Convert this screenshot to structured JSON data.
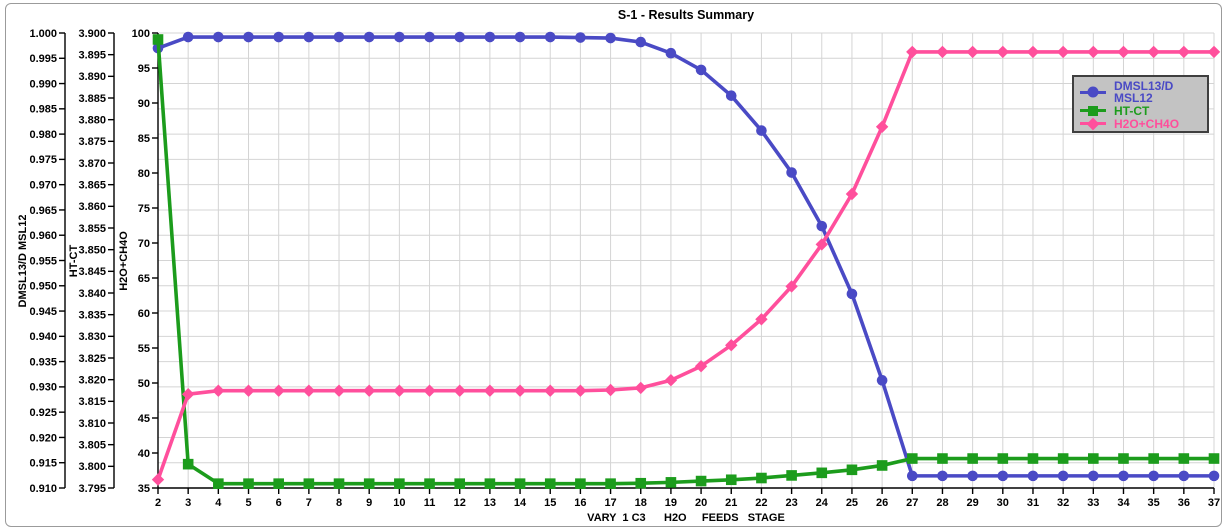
{
  "panel": {
    "background": "#FFFFFF",
    "border_color": "#9B9B9B"
  },
  "chart_data": {
    "type": "line",
    "title": "S-1 - Results Summary",
    "xlabel": "VARY 1 C3 H2O FEEDS STAGE",
    "xlabel_display": "VARY  1 C3      H2O     FEEDS   STAGE",
    "x": [
      2,
      3,
      4,
      5,
      6,
      7,
      8,
      9,
      10,
      11,
      12,
      13,
      14,
      15,
      16,
      17,
      18,
      19,
      20,
      21,
      22,
      23,
      24,
      25,
      26,
      27,
      28,
      29,
      30,
      31,
      32,
      33,
      34,
      35,
      36,
      37
    ],
    "x_tick_labels": [
      "2",
      "3",
      "4",
      "5",
      "6",
      "7",
      "8",
      "9",
      "10",
      "11",
      "12",
      "13",
      "14",
      "15",
      "16",
      "17",
      "18",
      "19",
      "20",
      "21",
      "22",
      "23",
      "24",
      "25",
      "26",
      "27",
      "28",
      "29",
      "30",
      "31",
      "32",
      "33",
      "34",
      "35",
      "36",
      "37"
    ],
    "grid": {
      "show": true,
      "color": "#D4D4D4",
      "horizontal_divisions": 18
    },
    "axes": [
      {
        "id": "dmsl13",
        "label": "DMSL13/D MSL12",
        "min": 0.91,
        "max": 1.0,
        "tick_step": 0.005,
        "ticks": [
          "1.000",
          "0.995",
          "0.990",
          "0.985",
          "0.980",
          "0.975",
          "0.970",
          "0.965",
          "0.960",
          "0.955",
          "0.950",
          "0.945",
          "0.940",
          "0.935",
          "0.930",
          "0.925",
          "0.920",
          "0.915",
          "0.910"
        ]
      },
      {
        "id": "ht-ct",
        "label": "HT-CT",
        "min": 3.795,
        "max": 3.9,
        "tick_step": 0.005,
        "ticks": [
          "3.900",
          "3.895",
          "3.890",
          "3.885",
          "3.880",
          "3.875",
          "3.870",
          "3.865",
          "3.860",
          "3.855",
          "3.850",
          "3.845",
          "3.840",
          "3.835",
          "3.830",
          "3.825",
          "3.820",
          "3.815",
          "3.810",
          "3.805",
          "3.800",
          "3.795"
        ]
      },
      {
        "id": "h2o-ch4o",
        "label": "H2O+CH4O",
        "min": 35,
        "max": 100,
        "tick_step": 5,
        "ticks": [
          "100",
          "95",
          "90",
          "85",
          "80",
          "75",
          "70",
          "65",
          "60",
          "55",
          "50",
          "45",
          "40",
          "35"
        ]
      }
    ],
    "series": [
      {
        "name": "DMSL13/D MSL12",
        "color": "#4A4AC5",
        "marker": "circle",
        "axis": "dmsl13",
        "ylim": [
          0.91,
          1.0
        ],
        "values": [
          0.997,
          0.9992,
          0.9992,
          0.9992,
          0.9992,
          0.9992,
          0.9992,
          0.9992,
          0.9992,
          0.9992,
          0.9992,
          0.9992,
          0.9992,
          0.9992,
          0.9991,
          0.999,
          0.9982,
          0.996,
          0.9927,
          0.9876,
          0.9807,
          0.9724,
          0.9618,
          0.9484,
          0.9313,
          0.9124,
          0.9124,
          0.9124,
          0.9124,
          0.9124,
          0.9124,
          0.9124,
          0.9124,
          0.9124,
          0.9124,
          0.9124
        ]
      },
      {
        "name": "HT-CT",
        "color": "#1C9C1C",
        "marker": "square",
        "axis": "ht-ct",
        "ylim": [
          3.795,
          3.9
        ],
        "values": [
          3.8985,
          3.8005,
          3.796,
          3.796,
          3.796,
          3.796,
          3.796,
          3.796,
          3.796,
          3.796,
          3.796,
          3.796,
          3.796,
          3.796,
          3.796,
          3.796,
          3.7961,
          3.7963,
          3.7966,
          3.7969,
          3.7973,
          3.7979,
          3.7985,
          3.7992,
          3.8002,
          3.8018,
          3.8018,
          3.8018,
          3.8018,
          3.8018,
          3.8018,
          3.8018,
          3.8018,
          3.8018,
          3.8018,
          3.8018
        ]
      },
      {
        "name": "H2O+CH4O",
        "color": "#FF4F9C",
        "marker": "diamond",
        "axis": "h2o-ch4o",
        "ylim": [
          35,
          100
        ],
        "values": [
          36.2,
          48.4,
          48.9,
          48.9,
          48.9,
          48.9,
          48.9,
          48.9,
          48.9,
          48.9,
          48.9,
          48.9,
          48.9,
          48.9,
          48.9,
          49.0,
          49.3,
          50.4,
          52.4,
          55.4,
          59.1,
          63.8,
          69.8,
          77.0,
          86.6,
          97.3,
          97.3,
          97.3,
          97.3,
          97.3,
          97.3,
          97.3,
          97.3,
          97.3,
          97.3,
          97.3
        ]
      }
    ],
    "legend": {
      "position": "top-right",
      "entries": [
        "DMSL13/D MSL12",
        "HT-CT",
        "H2O+CH4O"
      ]
    }
  }
}
